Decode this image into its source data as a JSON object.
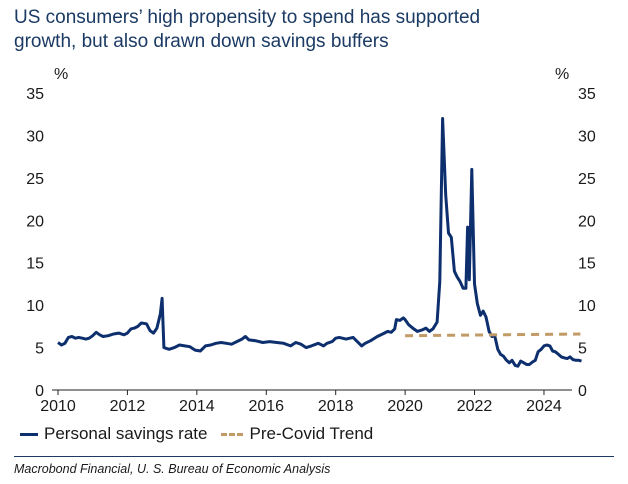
{
  "title": {
    "line1": "US consumers’ high propensity to spend has supported",
    "line2": "growth, but also drawn down savings buffers"
  },
  "source": "Macrobond Financial, U. S. Bureau of Economic Analysis",
  "colors": {
    "savings": "#0d2f6e",
    "trend": "#c29a66",
    "title": "#1b3a64"
  },
  "chart_data": {
    "type": "line",
    "ylabel_left": "%",
    "ylabel_right": "%",
    "ylim": [
      0,
      35
    ],
    "xlim": [
      2010,
      2024.75
    ],
    "yticks": [
      "0",
      "5",
      "10",
      "15",
      "20",
      "25",
      "30",
      "35"
    ],
    "xticks": [
      "2010",
      "2012",
      "2014",
      "2016",
      "2018",
      "2020",
      "2022",
      "2024"
    ],
    "grid": false,
    "legend_position": "bottom",
    "series": [
      {
        "name": "Personal savings rate",
        "style": "solid",
        "points": [
          [
            2010.0,
            5.6
          ],
          [
            2010.1,
            5.3
          ],
          [
            2010.2,
            5.5
          ],
          [
            2010.3,
            6.2
          ],
          [
            2010.4,
            6.3
          ],
          [
            2010.5,
            6.1
          ],
          [
            2010.6,
            6.2
          ],
          [
            2010.7,
            6.1
          ],
          [
            2010.8,
            6.0
          ],
          [
            2010.9,
            6.1
          ],
          [
            2011.0,
            6.4
          ],
          [
            2011.1,
            6.8
          ],
          [
            2011.2,
            6.5
          ],
          [
            2011.3,
            6.3
          ],
          [
            2011.45,
            6.4
          ],
          [
            2011.6,
            6.6
          ],
          [
            2011.75,
            6.7
          ],
          [
            2011.9,
            6.5
          ],
          [
            2012.0,
            6.7
          ],
          [
            2012.1,
            7.2
          ],
          [
            2012.2,
            7.3
          ],
          [
            2012.3,
            7.5
          ],
          [
            2012.4,
            7.9
          ],
          [
            2012.55,
            7.8
          ],
          [
            2012.65,
            7.0
          ],
          [
            2012.75,
            6.7
          ],
          [
            2012.85,
            7.3
          ],
          [
            2012.95,
            9.0
          ],
          [
            2013.0,
            10.8
          ],
          [
            2013.05,
            5.0
          ],
          [
            2013.2,
            4.8
          ],
          [
            2013.35,
            5.0
          ],
          [
            2013.5,
            5.3
          ],
          [
            2013.65,
            5.2
          ],
          [
            2013.8,
            5.1
          ],
          [
            2013.95,
            4.7
          ],
          [
            2014.1,
            4.6
          ],
          [
            2014.25,
            5.2
          ],
          [
            2014.4,
            5.3
          ],
          [
            2014.55,
            5.5
          ],
          [
            2014.7,
            5.6
          ],
          [
            2014.85,
            5.5
          ],
          [
            2015.0,
            5.4
          ],
          [
            2015.15,
            5.7
          ],
          [
            2015.3,
            6.0
          ],
          [
            2015.4,
            6.3
          ],
          [
            2015.5,
            5.9
          ],
          [
            2015.7,
            5.8
          ],
          [
            2015.9,
            5.6
          ],
          [
            2016.1,
            5.7
          ],
          [
            2016.3,
            5.6
          ],
          [
            2016.5,
            5.5
          ],
          [
            2016.7,
            5.2
          ],
          [
            2016.85,
            5.6
          ],
          [
            2017.0,
            5.4
          ],
          [
            2017.15,
            5.0
          ],
          [
            2017.3,
            5.2
          ],
          [
            2017.5,
            5.5
          ],
          [
            2017.65,
            5.2
          ],
          [
            2017.75,
            5.5
          ],
          [
            2017.9,
            5.7
          ],
          [
            2018.0,
            6.1
          ],
          [
            2018.1,
            6.2
          ],
          [
            2018.3,
            6.0
          ],
          [
            2018.5,
            6.2
          ],
          [
            2018.6,
            5.8
          ],
          [
            2018.75,
            5.2
          ],
          [
            2018.85,
            5.5
          ],
          [
            2019.0,
            5.8
          ],
          [
            2019.2,
            6.3
          ],
          [
            2019.35,
            6.6
          ],
          [
            2019.5,
            6.9
          ],
          [
            2019.6,
            6.8
          ],
          [
            2019.7,
            7.2
          ],
          [
            2019.75,
            8.3
          ],
          [
            2019.85,
            8.2
          ],
          [
            2019.95,
            8.5
          ],
          [
            2020.0,
            8.3
          ],
          [
            2020.1,
            7.7
          ],
          [
            2020.25,
            7.2
          ],
          [
            2020.35,
            6.9
          ],
          [
            2020.5,
            7.1
          ],
          [
            2020.6,
            7.3
          ],
          [
            2020.7,
            6.9
          ],
          [
            2020.8,
            7.2
          ],
          [
            2020.92,
            8.0
          ],
          [
            2021.0,
            12.8
          ],
          [
            2021.08,
            32.0
          ],
          [
            2021.17,
            23.0
          ],
          [
            2021.25,
            18.5
          ],
          [
            2021.33,
            18.0
          ],
          [
            2021.42,
            14.0
          ],
          [
            2021.5,
            13.3
          ],
          [
            2021.58,
            12.8
          ],
          [
            2021.67,
            12.0
          ],
          [
            2021.75,
            12.0
          ],
          [
            2021.8,
            19.2
          ],
          [
            2021.85,
            13.0
          ],
          [
            2021.92,
            26.0
          ],
          [
            2022.0,
            12.5
          ],
          [
            2022.08,
            10.2
          ],
          [
            2022.17,
            8.8
          ],
          [
            2022.25,
            9.3
          ],
          [
            2022.33,
            8.6
          ],
          [
            2022.42,
            6.9
          ],
          [
            2022.5,
            6.3
          ],
          [
            2022.58,
            6.4
          ],
          [
            2022.67,
            4.8
          ],
          [
            2022.75,
            4.2
          ],
          [
            2022.83,
            4.0
          ],
          [
            2022.92,
            3.5
          ],
          [
            2023.0,
            3.2
          ],
          [
            2023.08,
            3.5
          ],
          [
            2023.17,
            2.9
          ],
          [
            2023.25,
            2.8
          ],
          [
            2023.33,
            3.4
          ],
          [
            2023.42,
            3.2
          ],
          [
            2023.5,
            3.0
          ],
          [
            2023.58,
            3.0
          ],
          [
            2023.67,
            3.3
          ],
          [
            2023.75,
            3.5
          ],
          [
            2023.83,
            4.5
          ],
          [
            2023.92,
            4.8
          ],
          [
            2024.0,
            5.2
          ],
          [
            2024.08,
            5.3
          ],
          [
            2024.17,
            5.2
          ],
          [
            2024.25,
            4.6
          ],
          [
            2024.33,
            4.5
          ],
          [
            2024.42,
            4.2
          ],
          [
            2024.5,
            3.9
          ],
          [
            2024.58,
            3.8
          ],
          [
            2024.67,
            3.7
          ],
          [
            2024.75,
            3.9
          ],
          [
            2024.83,
            3.6
          ],
          [
            2024.92,
            3.5
          ],
          [
            2025.0,
            3.5
          ],
          [
            2025.08,
            3.4
          ]
        ]
      },
      {
        "name": "Pre-Covid Trend",
        "style": "dashed",
        "points": [
          [
            2020.0,
            6.4
          ],
          [
            2025.05,
            6.6
          ]
        ]
      }
    ]
  }
}
